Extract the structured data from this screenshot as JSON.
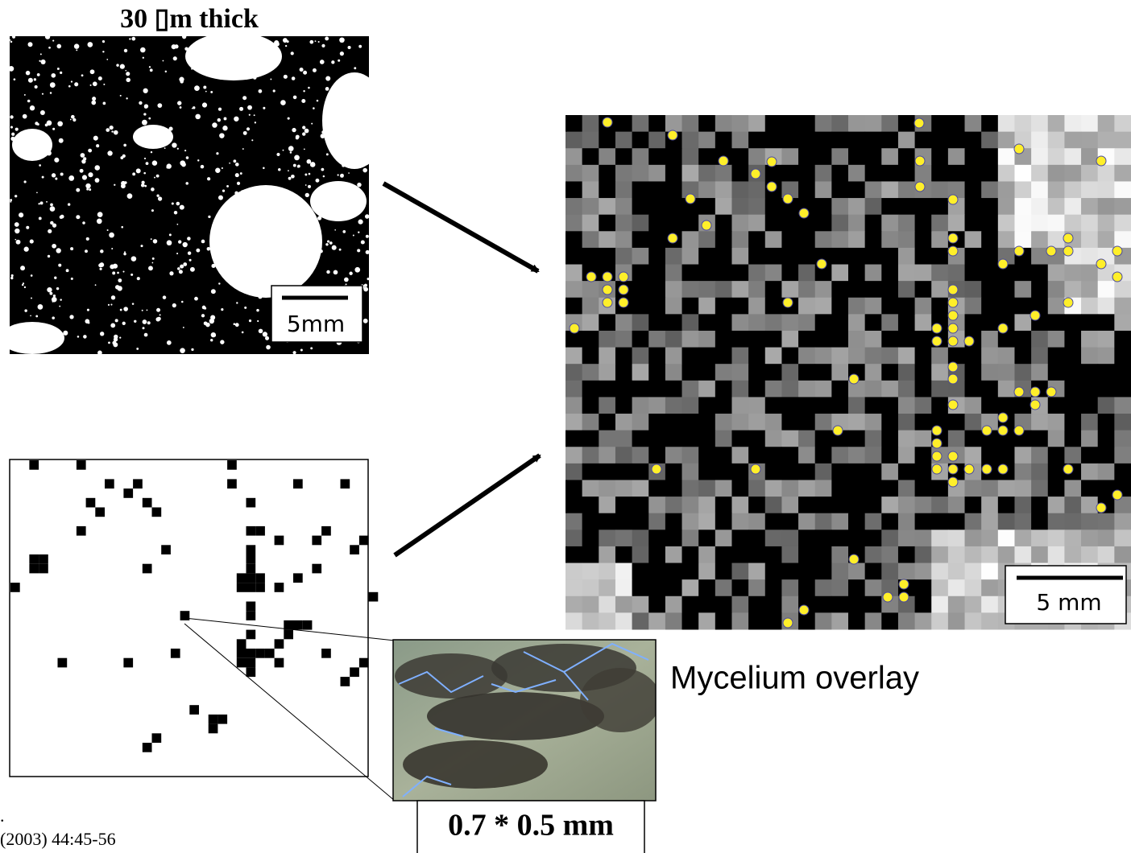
{
  "header": {
    "title": "30 ▯m thick"
  },
  "soil_image": {
    "scale_bar": "5mm"
  },
  "overlay_image": {
    "scale_bar": "5 mm",
    "caption": "Mycelium overlay"
  },
  "photo": {
    "size_label": "0.7 * 0.5 mm"
  },
  "footer": {
    "mark": ".",
    "citation": "(2003) 44:45-56"
  }
}
